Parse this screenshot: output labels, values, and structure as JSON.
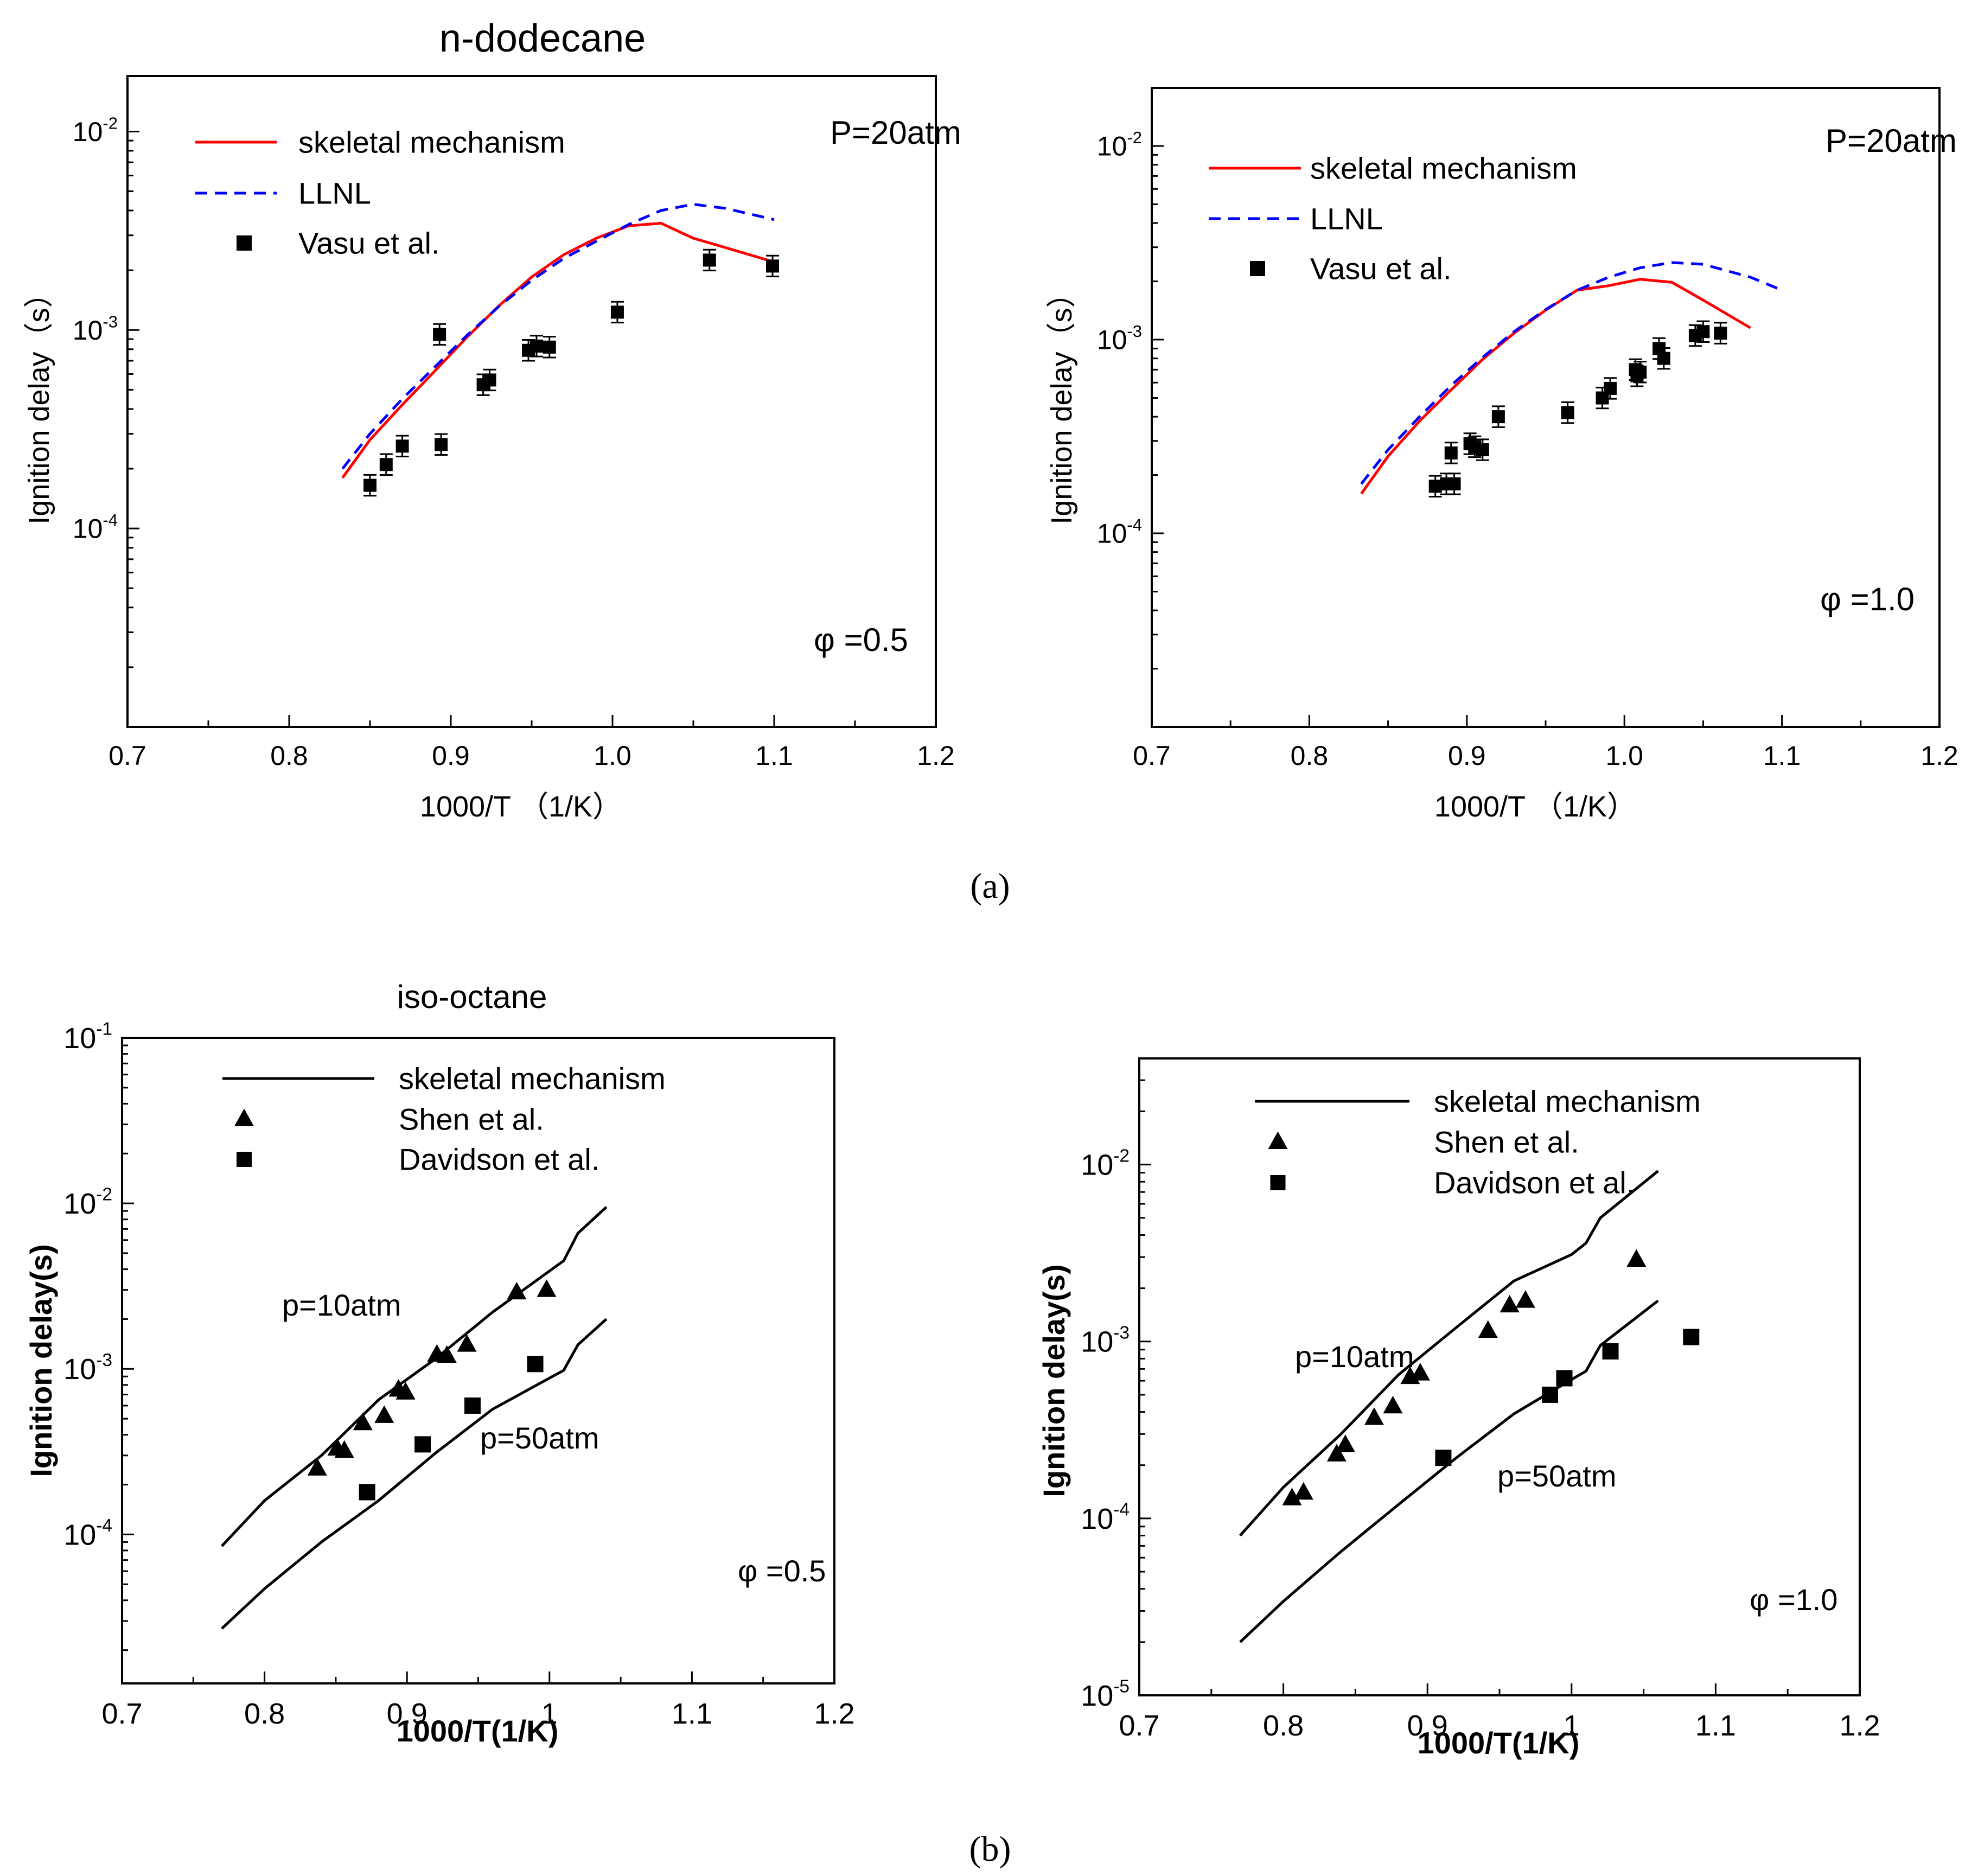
{
  "captions": {
    "a": "(a)",
    "b": "(b)"
  },
  "colors": {
    "skeletal_a": "#ff0000",
    "llnl": "#0000ff",
    "black": "#000000"
  },
  "chart_data": [
    {
      "type": "line",
      "title": "n-dodecane",
      "xlabel": "1000/T （1/K）",
      "ylabel": "Ignition delay（s）",
      "xlim": [
        0.7,
        1.2
      ],
      "ylog": [
        -5,
        -1.72
      ],
      "xticks": [
        "0.7",
        "0.8",
        "0.9",
        "1.0",
        "1.1",
        "1.2"
      ],
      "ytick_labels": [
        {
          "base": "10",
          "exp": "-4",
          "v": -4
        },
        {
          "base": "10",
          "exp": "-3",
          "v": -3
        },
        {
          "base": "10",
          "exp": "-2",
          "v": -2
        }
      ],
      "annotations": [
        "P=20atm",
        "φ =0.5"
      ],
      "legend": [
        "skeletal mechanism",
        "LLNL",
        "Vasu et al."
      ],
      "series": [
        {
          "name": "skeletal mechanism",
          "style": "solid-red",
          "x": [
            0.833,
            0.85,
            0.87,
            0.89,
            0.91,
            0.93,
            0.95,
            0.97,
            0.99,
            1.01,
            1.03,
            1.05,
            1.07,
            1.1
          ],
          "y": [
            0.00018,
            0.00028,
            0.00042,
            0.00062,
            0.00092,
            0.00133,
            0.00185,
            0.0024,
            0.0029,
            0.00335,
            0.00345,
            0.0029,
            0.0026,
            0.0022
          ]
        },
        {
          "name": "LLNL",
          "style": "dashed-blue",
          "x": [
            0.833,
            0.85,
            0.87,
            0.89,
            0.91,
            0.93,
            0.95,
            0.97,
            0.99,
            1.01,
            1.03,
            1.05,
            1.07,
            1.1
          ],
          "y": [
            0.0002,
            0.0003,
            0.00045,
            0.00065,
            0.00094,
            0.00132,
            0.00178,
            0.0023,
            0.0028,
            0.0034,
            0.004,
            0.0043,
            0.0041,
            0.0036
          ]
        },
        {
          "name": "Vasu et al.",
          "style": "square",
          "x": [
            0.85,
            0.86,
            0.87,
            0.893,
            0.894,
            0.92,
            0.924,
            0.948,
            0.953,
            0.961,
            1.003,
            1.06,
            1.099
          ],
          "y": [
            0.000165,
            0.00021,
            0.00026,
            0.00095,
            0.000265,
            0.00053,
            0.00056,
            0.00079,
            0.00083,
            0.00082,
            0.00123,
            0.00225,
            0.0021
          ]
        }
      ]
    },
    {
      "type": "line",
      "title": "",
      "xlabel": "1000/T （1/K）",
      "ylabel": "Ignition delay（s）",
      "xlim": [
        0.7,
        1.2
      ],
      "ylog": [
        -5,
        -1.7
      ],
      "xticks": [
        "0.7",
        "0.8",
        "0.9",
        "1.0",
        "1.1",
        "1.2"
      ],
      "ytick_labels": [
        {
          "base": "10",
          "exp": "-4",
          "v": -4
        },
        {
          "base": "10",
          "exp": "-3",
          "v": -3
        },
        {
          "base": "10",
          "exp": "-2",
          "v": -2
        }
      ],
      "annotations": [
        "P=20atm",
        "φ =1.0"
      ],
      "legend": [
        "skeletal mechanism",
        "LLNL",
        "Vasu et al."
      ],
      "series": [
        {
          "name": "skeletal mechanism",
          "style": "solid-red",
          "x": [
            0.833,
            0.85,
            0.87,
            0.89,
            0.91,
            0.93,
            0.95,
            0.97,
            0.99,
            1.01,
            1.03,
            1.05,
            1.08
          ],
          "y": [
            0.00016,
            0.00025,
            0.00038,
            0.00055,
            0.00079,
            0.00108,
            0.00142,
            0.0018,
            0.0019,
            0.00205,
            0.00198,
            0.0016,
            0.00115
          ]
        },
        {
          "name": "LLNL",
          "style": "dashed-blue",
          "x": [
            0.833,
            0.85,
            0.87,
            0.89,
            0.91,
            0.93,
            0.95,
            0.97,
            0.99,
            1.01,
            1.03,
            1.05,
            1.08,
            1.1
          ],
          "y": [
            0.00018,
            0.00027,
            0.0004,
            0.00058,
            0.00081,
            0.0011,
            0.00143,
            0.0018,
            0.0021,
            0.00235,
            0.0025,
            0.00245,
            0.0021,
            0.0018
          ]
        },
        {
          "name": "Vasu et al.",
          "style": "square",
          "x": [
            0.88,
            0.887,
            0.89,
            0.892,
            0.902,
            0.905,
            0.91,
            0.92,
            0.964,
            0.986,
            0.991,
            1.007,
            1.008,
            1.01,
            1.022,
            1.025,
            1.045,
            1.05,
            1.061
          ],
          "y": [
            0.000175,
            0.00018,
            0.00026,
            0.00018,
            0.00029,
            0.00028,
            0.00027,
            0.0004,
            0.00042,
            0.0005,
            0.00056,
            0.0007,
            0.00065,
            0.00068,
            0.0009,
            0.0008,
            0.00105,
            0.0011,
            0.00108
          ]
        }
      ]
    },
    {
      "type": "line",
      "title": "iso-octane",
      "xlabel": "1000/T(1/K)",
      "ylabel": "Ignition delay(s)",
      "xlim": [
        0.7,
        1.2
      ],
      "ylog": [
        -4.9,
        -1
      ],
      "xticks": [
        "0.7",
        "0.8",
        "0.9",
        "1",
        "1.1",
        "1.2"
      ],
      "ytick_labels": [
        {
          "base": "10",
          "exp": "-4",
          "v": -4
        },
        {
          "base": "10",
          "exp": "-3",
          "v": -3
        },
        {
          "base": "10",
          "exp": "-2",
          "v": -2
        },
        {
          "base": "10",
          "exp": "-1",
          "v": -1
        }
      ],
      "annotations": [
        "p=10atm",
        "p=50atm",
        "φ =0.5"
      ],
      "legend": [
        "skeletal mechanism",
        "Shen et al.",
        "Davidson et al."
      ],
      "series": [
        {
          "name": "skeletal mechanism p=10atm",
          "style": "solid-black",
          "x": [
            0.77,
            0.8,
            0.84,
            0.88,
            0.92,
            0.96,
            1.0,
            1.01,
            1.02,
            1.04
          ],
          "y": [
            8.5e-05,
            0.00016,
            0.0003,
            0.00065,
            0.00115,
            0.0022,
            0.0039,
            0.0045,
            0.0066,
            0.0095
          ]
        },
        {
          "name": "skeletal mechanism p=50atm",
          "style": "solid-black",
          "x": [
            0.77,
            0.8,
            0.84,
            0.88,
            0.92,
            0.96,
            1.0,
            1.01,
            1.02,
            1.04
          ],
          "y": [
            2.7e-05,
            4.7e-05,
            9e-05,
            0.00016,
            0.00031,
            0.00057,
            0.00088,
            0.00098,
            0.0014,
            0.002
          ]
        },
        {
          "name": "Shen et al.",
          "style": "triangle",
          "x": [
            0.837,
            0.851,
            0.856,
            0.869,
            0.884,
            0.894,
            0.899,
            0.921,
            0.928,
            0.942,
            0.977,
            0.998
          ],
          "y": [
            0.00025,
            0.00033,
            0.00032,
            0.00047,
            0.00052,
            0.00075,
            0.00072,
            0.00122,
            0.0012,
            0.0014,
            0.0029,
            0.003
          ]
        },
        {
          "name": "Davidson et al.",
          "style": "square",
          "x": [
            0.872,
            0.911,
            0.946,
            0.99
          ],
          "y": [
            0.00018,
            0.00035,
            0.0006,
            0.00107
          ]
        }
      ]
    },
    {
      "type": "line",
      "title": "",
      "xlabel": "1000/T(1/K)",
      "ylabel": "Ignition delay(s)",
      "xlim": [
        0.7,
        1.2
      ],
      "ylog": [
        -5,
        -1.4
      ],
      "xticks": [
        "0.7",
        "0.8",
        "0.9",
        "1",
        "1.1",
        "1.2"
      ],
      "ytick_labels": [
        {
          "base": "10",
          "exp": "-5",
          "v": -5
        },
        {
          "base": "10",
          "exp": "-4",
          "v": -4
        },
        {
          "base": "10",
          "exp": "-3",
          "v": -3
        },
        {
          "base": "10",
          "exp": "-2",
          "v": -2
        }
      ],
      "annotations": [
        "p=10atm",
        "p=50atm",
        "φ =1.0"
      ],
      "legend": [
        "skeletal mechanism",
        "Shen et al.",
        "Davidson et al."
      ],
      "series": [
        {
          "name": "skeletal mechanism p=10atm",
          "style": "solid-black",
          "x": [
            0.77,
            0.8,
            0.84,
            0.88,
            0.92,
            0.96,
            1.0,
            1.01,
            1.02,
            1.06
          ],
          "y": [
            8e-05,
            0.00015,
            0.0003,
            0.00065,
            0.0012,
            0.0022,
            0.0031,
            0.0036,
            0.005,
            0.0092
          ]
        },
        {
          "name": "skeletal mechanism p=50atm",
          "style": "solid-black",
          "x": [
            0.77,
            0.8,
            0.84,
            0.88,
            0.92,
            0.96,
            1.0,
            1.01,
            1.02,
            1.06
          ],
          "y": [
            2e-05,
            3.4e-05,
            6.5e-05,
            0.00012,
            0.00022,
            0.00039,
            0.00061,
            0.00068,
            0.00095,
            0.0017
          ]
        },
        {
          "name": "Shen et al.",
          "style": "triangle",
          "x": [
            0.806,
            0.814,
            0.837,
            0.843,
            0.863,
            0.876,
            0.888,
            0.895,
            0.942,
            0.957,
            0.968,
            1.045
          ],
          "y": [
            0.00013,
            0.00014,
            0.00023,
            0.00026,
            0.00037,
            0.00043,
            0.00063,
            0.00066,
            0.00115,
            0.0016,
            0.0017,
            0.0029
          ]
        },
        {
          "name": "Davidson et al.",
          "style": "square",
          "x": [
            0.911,
            0.985,
            0.995,
            1.027,
            1.083
          ],
          "y": [
            0.00022,
            0.0005,
            0.00062,
            0.00088,
            0.00106
          ]
        }
      ]
    }
  ]
}
